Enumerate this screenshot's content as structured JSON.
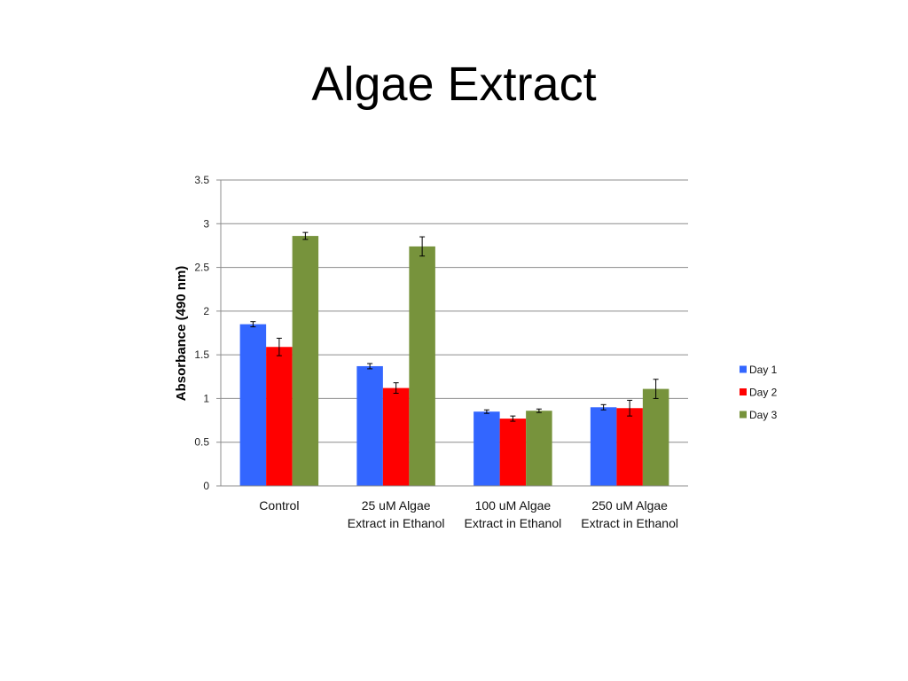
{
  "slide": {
    "title": "Algae Extract"
  },
  "chart_data": {
    "type": "bar",
    "title": "",
    "xlabel": "",
    "ylabel": "Absorbance (490 nm)",
    "ylim": [
      0,
      3.5
    ],
    "yticks": [
      "0",
      "0.5",
      "1",
      "1.5",
      "2",
      "2.5",
      "3",
      "3.5"
    ],
    "grid": true,
    "legend_position": "right",
    "categories": [
      [
        "Control"
      ],
      [
        "25 uM Algae",
        "Extract in Ethanol"
      ],
      [
        "100 uM Algae",
        "Extract in Ethanol"
      ],
      [
        "250 uM Algae",
        "Extract in Ethanol"
      ]
    ],
    "series": [
      {
        "name": "Day 1",
        "color": "#3366ff",
        "values": [
          1.85,
          1.37,
          0.85,
          0.9
        ],
        "errors": [
          0.03,
          0.03,
          0.02,
          0.03
        ]
      },
      {
        "name": "Day 2",
        "color": "#ff0000",
        "values": [
          1.59,
          1.12,
          0.77,
          0.89
        ],
        "errors": [
          0.1,
          0.06,
          0.03,
          0.09
        ]
      },
      {
        "name": "Day 3",
        "color": "#77933c",
        "values": [
          2.86,
          2.74,
          0.86,
          1.11
        ],
        "errors": [
          0.04,
          0.11,
          0.02,
          0.11
        ]
      }
    ]
  }
}
